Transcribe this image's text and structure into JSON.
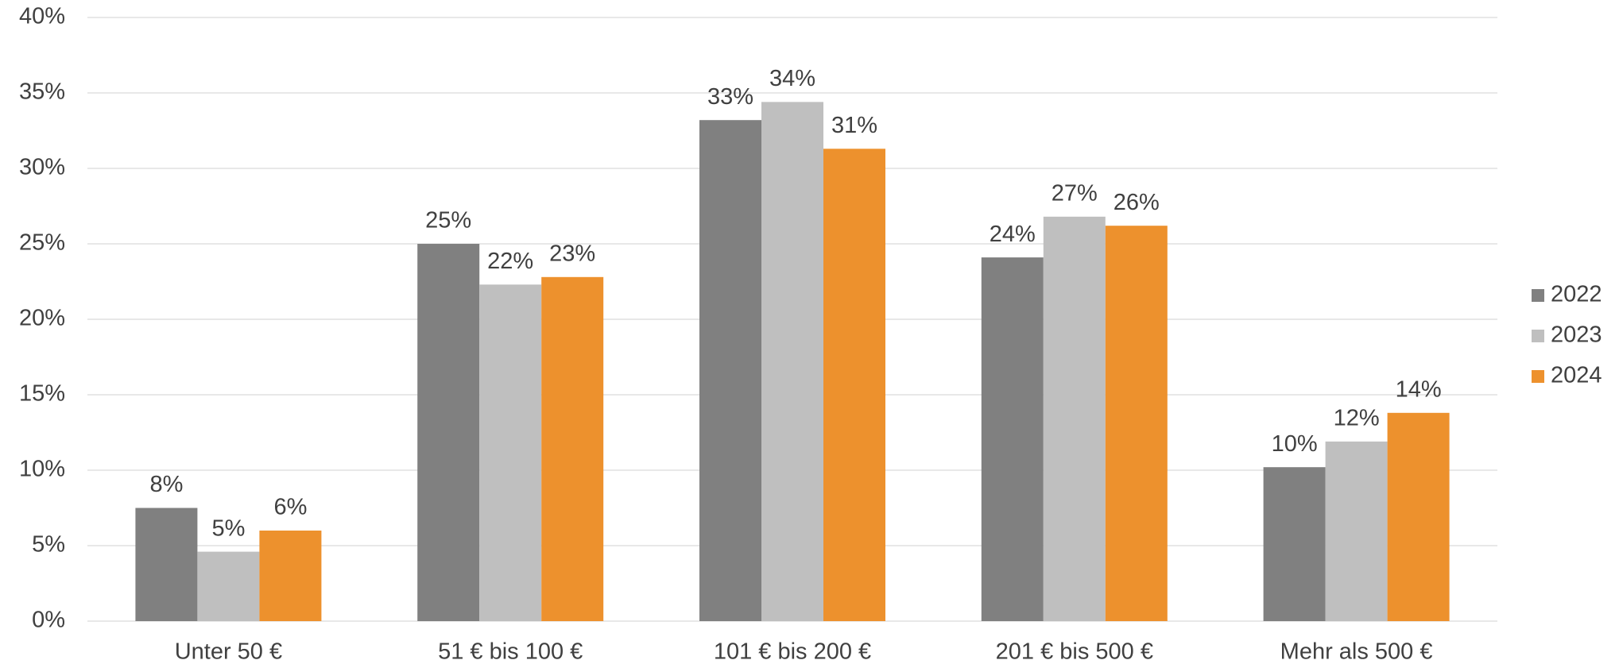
{
  "chart_data": {
    "type": "bar",
    "categories": [
      "Unter 50 €",
      "51 € bis 100 €",
      "101 € bis 200 €",
      "201 € bis 500 €",
      "Mehr als 500 €"
    ],
    "series": [
      {
        "name": "2022",
        "color": "#808080",
        "values": [
          7.5,
          25.0,
          33.2,
          24.1,
          10.2
        ],
        "value_labels": [
          "8%",
          "25%",
          "33%",
          "24%",
          "10%"
        ]
      },
      {
        "name": "2023",
        "color": "#bfbfbf",
        "values": [
          4.6,
          22.3,
          34.4,
          26.8,
          11.9
        ],
        "value_labels": [
          "5%",
          "22%",
          "34%",
          "27%",
          "12%"
        ]
      },
      {
        "name": "2024",
        "color": "#ed912d",
        "values": [
          6.0,
          22.8,
          31.3,
          26.2,
          13.8
        ],
        "value_labels": [
          "6%",
          "23%",
          "31%",
          "26%",
          "14%"
        ]
      }
    ],
    "ylim": [
      0,
      40
    ],
    "yticks": [
      {
        "value": 0,
        "label": "0%"
      },
      {
        "value": 5,
        "label": "5%"
      },
      {
        "value": 10,
        "label": "10%"
      },
      {
        "value": 15,
        "label": "15%"
      },
      {
        "value": 20,
        "label": "20%"
      },
      {
        "value": 25,
        "label": "25%"
      },
      {
        "value": 30,
        "label": "30%"
      },
      {
        "value": 35,
        "label": "35%"
      },
      {
        "value": 40,
        "label": "40%"
      }
    ],
    "grid": true,
    "legend": "right"
  }
}
